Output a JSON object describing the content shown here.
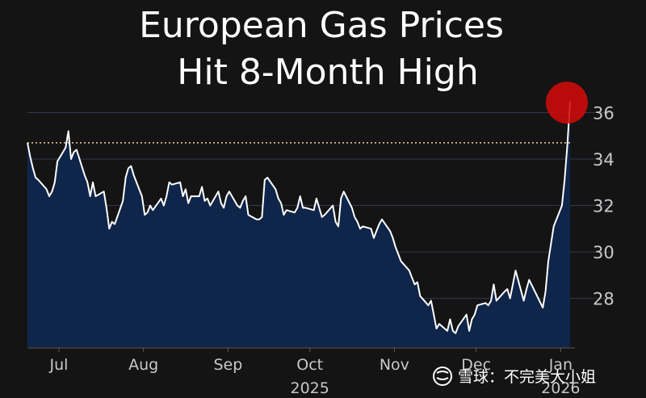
{
  "chart_data": {
    "type": "area",
    "title_lines": [
      "European Gas Prices",
      "Hit 8-Month High"
    ],
    "x_ticks": [
      "Jul",
      "Aug",
      "Sep",
      "Oct",
      "Nov",
      "Dec",
      "Jan"
    ],
    "x_year_labels": [
      "2025",
      "2026"
    ],
    "y_ticks": [
      28,
      30,
      32,
      34,
      36
    ],
    "ylim": [
      25.9,
      37.2
    ],
    "reference_line": 34.7,
    "grid": "horizontal",
    "y_axis_position": "right",
    "highlight": "latest point circled in red",
    "series": [
      {
        "points": [
          [
            "2025-06-23",
            34.7
          ],
          [
            "2025-06-24",
            34.1
          ],
          [
            "2025-06-25",
            33.6
          ],
          [
            "2025-06-26",
            33.2
          ],
          [
            "2025-06-27",
            33.1
          ],
          [
            "2025-06-30",
            32.7
          ],
          [
            "2025-07-01",
            32.4
          ],
          [
            "2025-07-02",
            32.6
          ],
          [
            "2025-07-03",
            33.0
          ],
          [
            "2025-07-04",
            33.9
          ],
          [
            "2025-07-07",
            34.5
          ],
          [
            "2025-07-08",
            35.2
          ],
          [
            "2025-07-09",
            34.0
          ],
          [
            "2025-07-10",
            34.3
          ],
          [
            "2025-07-11",
            34.4
          ],
          [
            "2025-07-14",
            33.3
          ],
          [
            "2025-07-15",
            33.0
          ],
          [
            "2025-07-16",
            32.4
          ],
          [
            "2025-07-17",
            33.0
          ],
          [
            "2025-07-18",
            32.4
          ],
          [
            "2025-07-21",
            32.6
          ],
          [
            "2025-07-22",
            31.9
          ],
          [
            "2025-07-23",
            31.0
          ],
          [
            "2025-07-24",
            31.3
          ],
          [
            "2025-07-25",
            31.2
          ],
          [
            "2025-07-28",
            32.2
          ],
          [
            "2025-07-29",
            33.2
          ],
          [
            "2025-07-30",
            33.6
          ],
          [
            "2025-07-31",
            33.7
          ],
          [
            "2025-08-01",
            33.3
          ],
          [
            "2025-08-04",
            32.4
          ],
          [
            "2025-08-05",
            31.6
          ],
          [
            "2025-08-06",
            31.7
          ],
          [
            "2025-08-07",
            32.0
          ],
          [
            "2025-08-08",
            31.8
          ],
          [
            "2025-08-11",
            32.3
          ],
          [
            "2025-08-12",
            32.0
          ],
          [
            "2025-08-13",
            32.4
          ],
          [
            "2025-08-14",
            33.0
          ],
          [
            "2025-08-15",
            32.9
          ],
          [
            "2025-08-18",
            33.0
          ],
          [
            "2025-08-19",
            32.4
          ],
          [
            "2025-08-20",
            32.7
          ],
          [
            "2025-08-21",
            32.1
          ],
          [
            "2025-08-22",
            32.4
          ],
          [
            "2025-08-25",
            32.4
          ],
          [
            "2025-08-26",
            32.8
          ],
          [
            "2025-08-27",
            32.2
          ],
          [
            "2025-08-28",
            32.3
          ],
          [
            "2025-08-29",
            32.0
          ],
          [
            "2025-09-01",
            32.6
          ],
          [
            "2025-09-02",
            32.1
          ],
          [
            "2025-09-03",
            31.9
          ],
          [
            "2025-09-04",
            32.4
          ],
          [
            "2025-09-05",
            32.6
          ],
          [
            "2025-09-08",
            32.0
          ],
          [
            "2025-09-09",
            31.9
          ],
          [
            "2025-09-10",
            32.2
          ],
          [
            "2025-09-11",
            32.4
          ],
          [
            "2025-09-12",
            31.6
          ],
          [
            "2025-09-15",
            31.4
          ],
          [
            "2025-09-16",
            31.4
          ],
          [
            "2025-09-17",
            31.5
          ],
          [
            "2025-09-18",
            33.1
          ],
          [
            "2025-09-19",
            33.2
          ],
          [
            "2025-09-22",
            32.7
          ],
          [
            "2025-09-23",
            32.3
          ],
          [
            "2025-09-24",
            32.1
          ],
          [
            "2025-09-25",
            31.6
          ],
          [
            "2025-09-26",
            31.8
          ],
          [
            "2025-09-29",
            31.7
          ],
          [
            "2025-09-30",
            31.9
          ],
          [
            "2025-10-01",
            32.4
          ],
          [
            "2025-10-02",
            31.9
          ],
          [
            "2025-10-03",
            31.9
          ],
          [
            "2025-10-06",
            31.8
          ],
          [
            "2025-10-07",
            32.3
          ],
          [
            "2025-10-08",
            31.9
          ],
          [
            "2025-10-09",
            31.5
          ],
          [
            "2025-10-10",
            31.6
          ],
          [
            "2025-10-13",
            32.0
          ],
          [
            "2025-10-14",
            31.3
          ],
          [
            "2025-10-15",
            31.1
          ],
          [
            "2025-10-16",
            32.3
          ],
          [
            "2025-10-17",
            32.6
          ],
          [
            "2025-10-20",
            31.9
          ],
          [
            "2025-10-21",
            31.5
          ],
          [
            "2025-10-22",
            31.3
          ],
          [
            "2025-10-23",
            31.0
          ],
          [
            "2025-10-24",
            31.1
          ],
          [
            "2025-10-27",
            31.0
          ],
          [
            "2025-10-28",
            30.6
          ],
          [
            "2025-10-29",
            30.9
          ],
          [
            "2025-10-30",
            31.2
          ],
          [
            "2025-10-31",
            31.4
          ],
          [
            "2025-11-03",
            30.9
          ],
          [
            "2025-11-04",
            30.6
          ],
          [
            "2025-11-05",
            30.2
          ],
          [
            "2025-11-06",
            29.9
          ],
          [
            "2025-11-07",
            29.6
          ],
          [
            "2025-11-10",
            29.2
          ],
          [
            "2025-11-11",
            28.9
          ],
          [
            "2025-11-12",
            28.6
          ],
          [
            "2025-11-13",
            28.7
          ],
          [
            "2025-11-14",
            28.1
          ],
          [
            "2025-11-17",
            27.7
          ],
          [
            "2025-11-18",
            27.9
          ],
          [
            "2025-11-19",
            27.3
          ],
          [
            "2025-11-20",
            26.7
          ],
          [
            "2025-11-21",
            26.9
          ],
          [
            "2025-11-24",
            26.6
          ],
          [
            "2025-11-25",
            27.1
          ],
          [
            "2025-11-26",
            26.6
          ],
          [
            "2025-11-27",
            26.5
          ],
          [
            "2025-11-28",
            26.8
          ],
          [
            "2025-12-01",
            27.3
          ],
          [
            "2025-12-02",
            26.6
          ],
          [
            "2025-12-03",
            27.1
          ],
          [
            "2025-12-04",
            27.3
          ],
          [
            "2025-12-05",
            27.7
          ],
          [
            "2025-12-08",
            27.8
          ],
          [
            "2025-12-09",
            27.7
          ],
          [
            "2025-12-10",
            27.9
          ],
          [
            "2025-12-11",
            28.6
          ],
          [
            "2025-12-12",
            27.9
          ],
          [
            "2025-12-15",
            28.3
          ],
          [
            "2025-12-16",
            28.4
          ],
          [
            "2025-12-17",
            28.0
          ],
          [
            "2025-12-18",
            28.6
          ],
          [
            "2025-12-19",
            29.2
          ],
          [
            "2025-12-22",
            27.9
          ],
          [
            "2025-12-23",
            28.4
          ],
          [
            "2025-12-24",
            28.8
          ],
          [
            "2025-12-29",
            27.6
          ],
          [
            "2025-12-30",
            28.3
          ],
          [
            "2025-12-31",
            29.6
          ],
          [
            "2026-01-02",
            31.1
          ],
          [
            "2026-01-05",
            32.0
          ],
          [
            "2026-01-06",
            33.1
          ],
          [
            "2026-01-07",
            34.6
          ],
          [
            "2026-01-08",
            36.5
          ]
        ]
      }
    ]
  },
  "watermark": "雪球：不完美大小姐",
  "colors": {
    "background": "#141414",
    "area_fill": "#0f254a",
    "line": "#ffffff",
    "reference_line": "#f0d2a8",
    "grid": "#2f3a4a",
    "highlight": "#d10a0a",
    "text": "#c8c8c8",
    "title": "#ffffff"
  }
}
